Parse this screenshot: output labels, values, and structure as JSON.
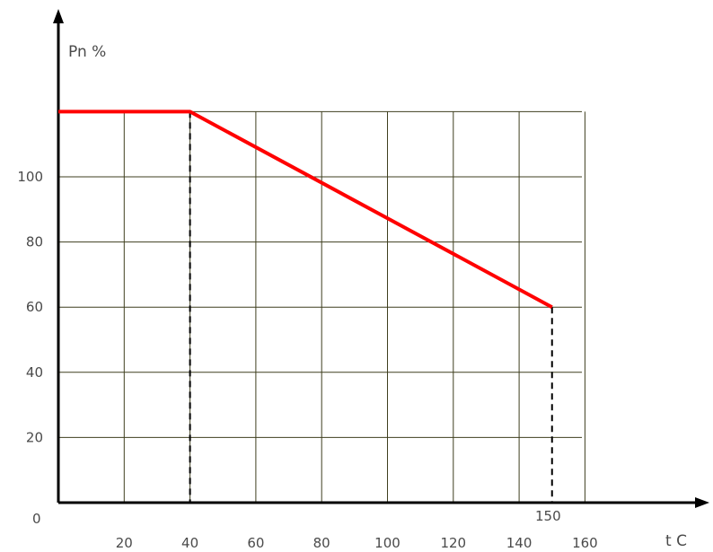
{
  "chart_data": {
    "type": "line",
    "title": "",
    "xlabel": "t C",
    "ylabel": "Pn %",
    "origin_label": "0",
    "x_ticks": [
      20,
      40,
      60,
      80,
      100,
      120,
      140,
      160
    ],
    "x_marker_label": "150",
    "y_ticks": [
      20,
      40,
      60,
      80,
      100
    ],
    "xlim": [
      0,
      160
    ],
    "ylim": [
      0,
      120
    ],
    "grid": true,
    "series": [
      {
        "color": "#ff0000",
        "x": [
          0,
          40,
          150
        ],
        "y": [
          120,
          120,
          60
        ]
      }
    ],
    "guides": [
      {
        "x": 40,
        "y": 120
      },
      {
        "x": 150,
        "y": 60
      }
    ]
  }
}
